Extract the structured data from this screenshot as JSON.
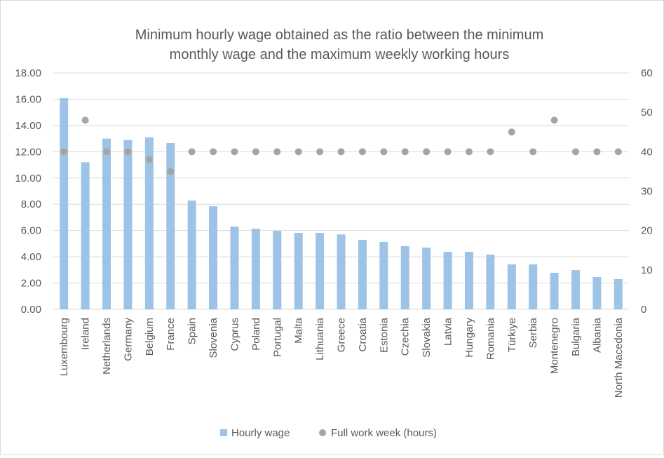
{
  "chart_data": {
    "type": "bar",
    "title_lines": [
      "Minimum hourly wage obtained as the ratio between the minimum",
      "monthly wage and the maximum weekly working hours"
    ],
    "categories": [
      "Luxembourg",
      "Ireland",
      "Netherlands",
      "Germany",
      "Belgium",
      "France",
      "Spain",
      "Slovenia",
      "Cyprus",
      "Poland",
      "Portugal",
      "Malta",
      "Lithuania",
      "Greece",
      "Croatia",
      "Estonia",
      "Czechia",
      "Slovakia",
      "Latvia",
      "Hungary",
      "Romania",
      "Türkiye",
      "Serbia",
      "Montenegro",
      "Bulgaria",
      "Albania",
      "North Macedonia"
    ],
    "series": [
      {
        "name": "Hourly wage",
        "type": "bar",
        "axis": "left",
        "color": "#9dc3e6",
        "values": [
          16.08,
          11.2,
          13.0,
          12.9,
          13.1,
          12.66,
          8.28,
          7.85,
          6.3,
          6.14,
          5.98,
          5.82,
          5.82,
          5.7,
          5.29,
          5.13,
          4.81,
          4.7,
          4.38,
          4.38,
          4.17,
          3.42,
          3.42,
          2.78,
          2.99,
          2.46,
          2.3
        ]
      },
      {
        "name": "Full work week (hours)",
        "type": "scatter",
        "axis": "right",
        "color": "#a5a5a5",
        "values": [
          40,
          48,
          40,
          40,
          38,
          35,
          40,
          40,
          40,
          40,
          40,
          40,
          40,
          40,
          40,
          40,
          40,
          40,
          40,
          40,
          40,
          45,
          40,
          48,
          40,
          40,
          40
        ]
      }
    ],
    "y_left": {
      "range": [
        0,
        18
      ],
      "ticks": [
        "0.00",
        "2.00",
        "4.00",
        "6.00",
        "8.00",
        "10.00",
        "12.00",
        "14.00",
        "16.00",
        "18.00"
      ]
    },
    "y_right": {
      "range": [
        0,
        60
      ],
      "ticks": [
        "0",
        "10",
        "20",
        "30",
        "40",
        "50",
        "60"
      ]
    },
    "grid": true,
    "legend_placement": "bottom"
  }
}
